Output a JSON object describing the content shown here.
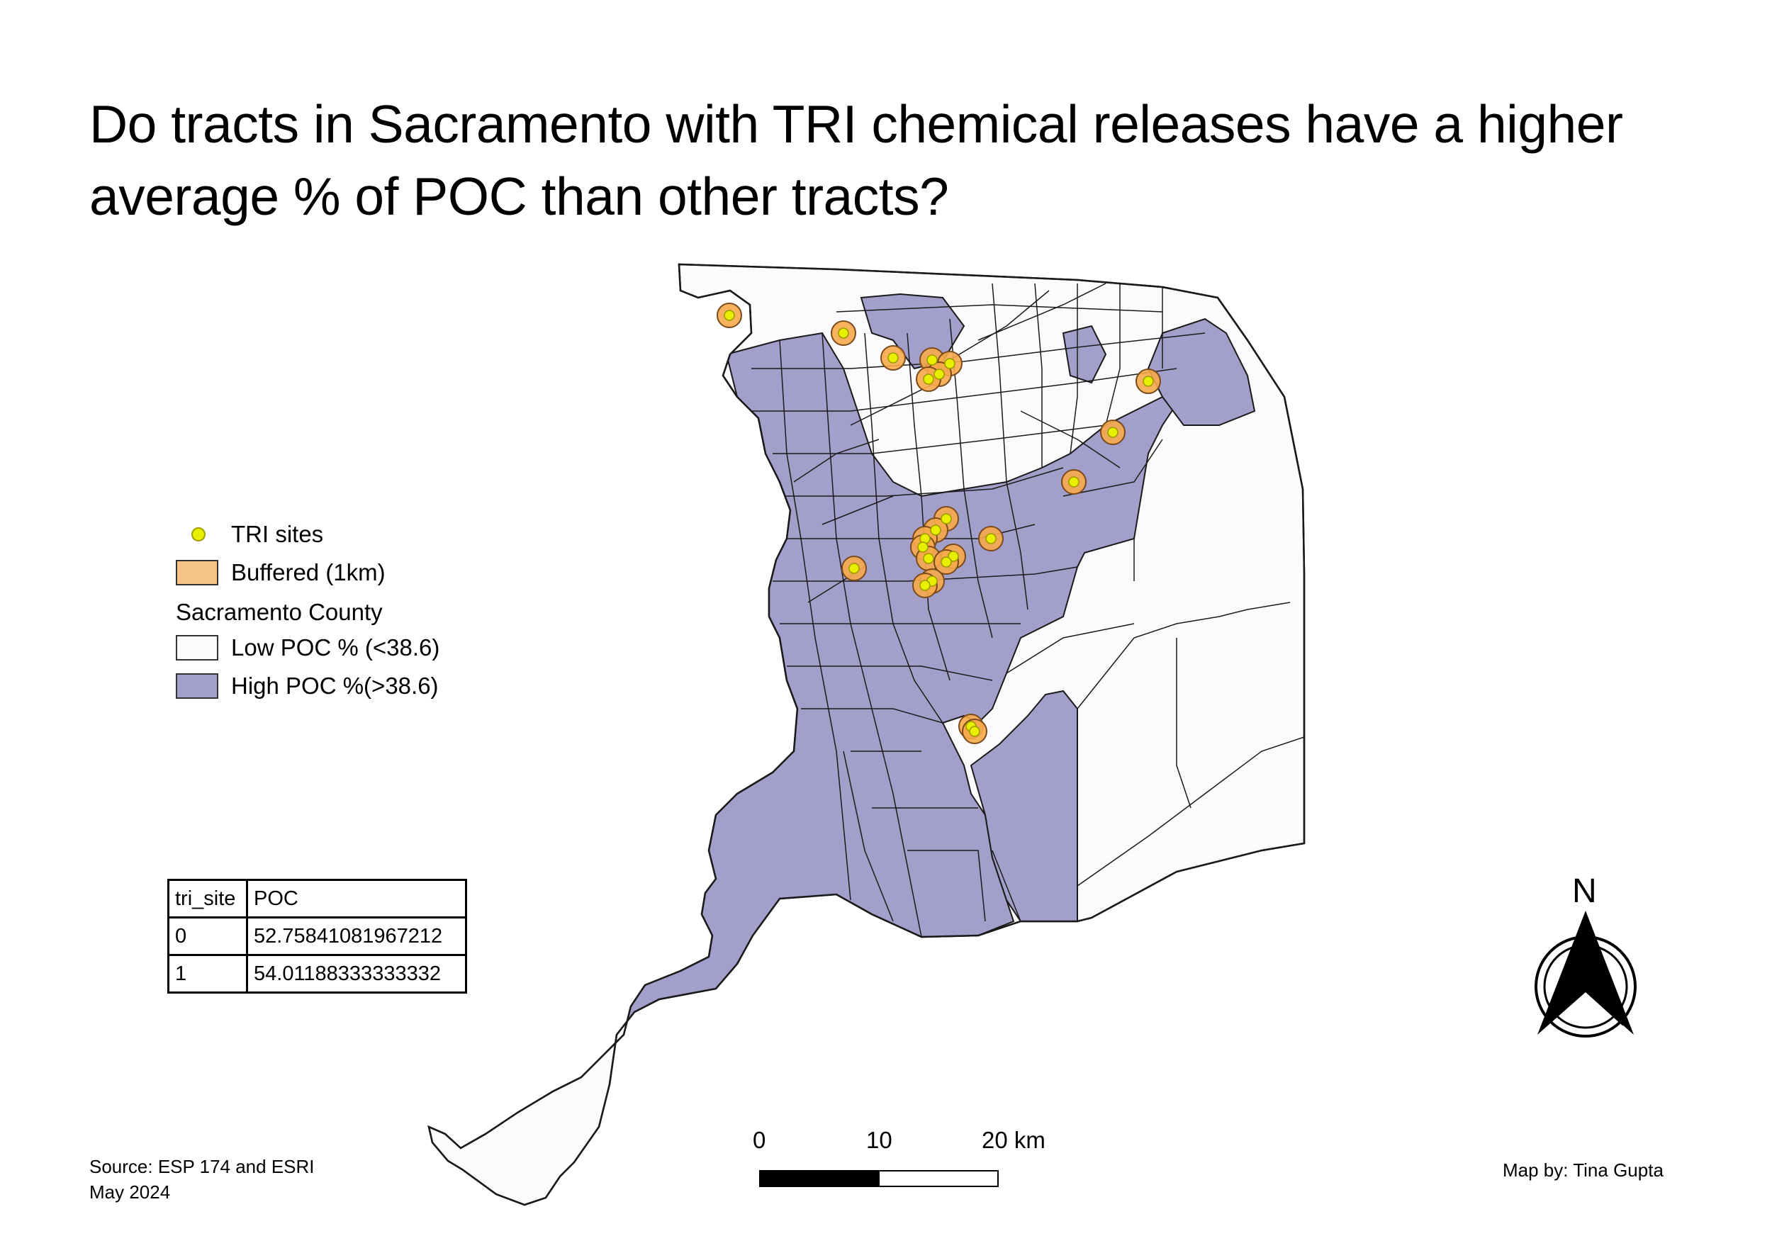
{
  "title": "Do tracts in Sacramento with TRI chemical releases have a higher average % of POC than other tracts?",
  "legend": {
    "tri_sites": "TRI sites",
    "buffered": "Buffered (1km)",
    "county_heading": "Sacramento County",
    "low_poc": "Low POC % (<38.6)",
    "high_poc": "High POC %(>38.6)"
  },
  "attribute_table": {
    "headers": [
      "tri_site",
      "POC"
    ],
    "rows": [
      [
        "0",
        "52.75841081967212"
      ],
      [
        "1",
        "54.01188333333332"
      ]
    ]
  },
  "scale_bar": {
    "labels": [
      "0",
      "10",
      "20 km"
    ]
  },
  "north_arrow": {
    "label": "N"
  },
  "source": {
    "line1": "Source: ESP 174 and ESRI",
    "line2": "May 2024"
  },
  "credit": "Map by: Tina Gupta",
  "colors": {
    "high_poc": "#a39fcb",
    "low_poc": "#fbfbfd",
    "buffer": "#f7a84a",
    "tri_site": "#e8f000",
    "boundary": "#1a1a1a"
  },
  "icons": [
    "north-arrow-icon",
    "tri-site-marker-icon"
  ]
}
